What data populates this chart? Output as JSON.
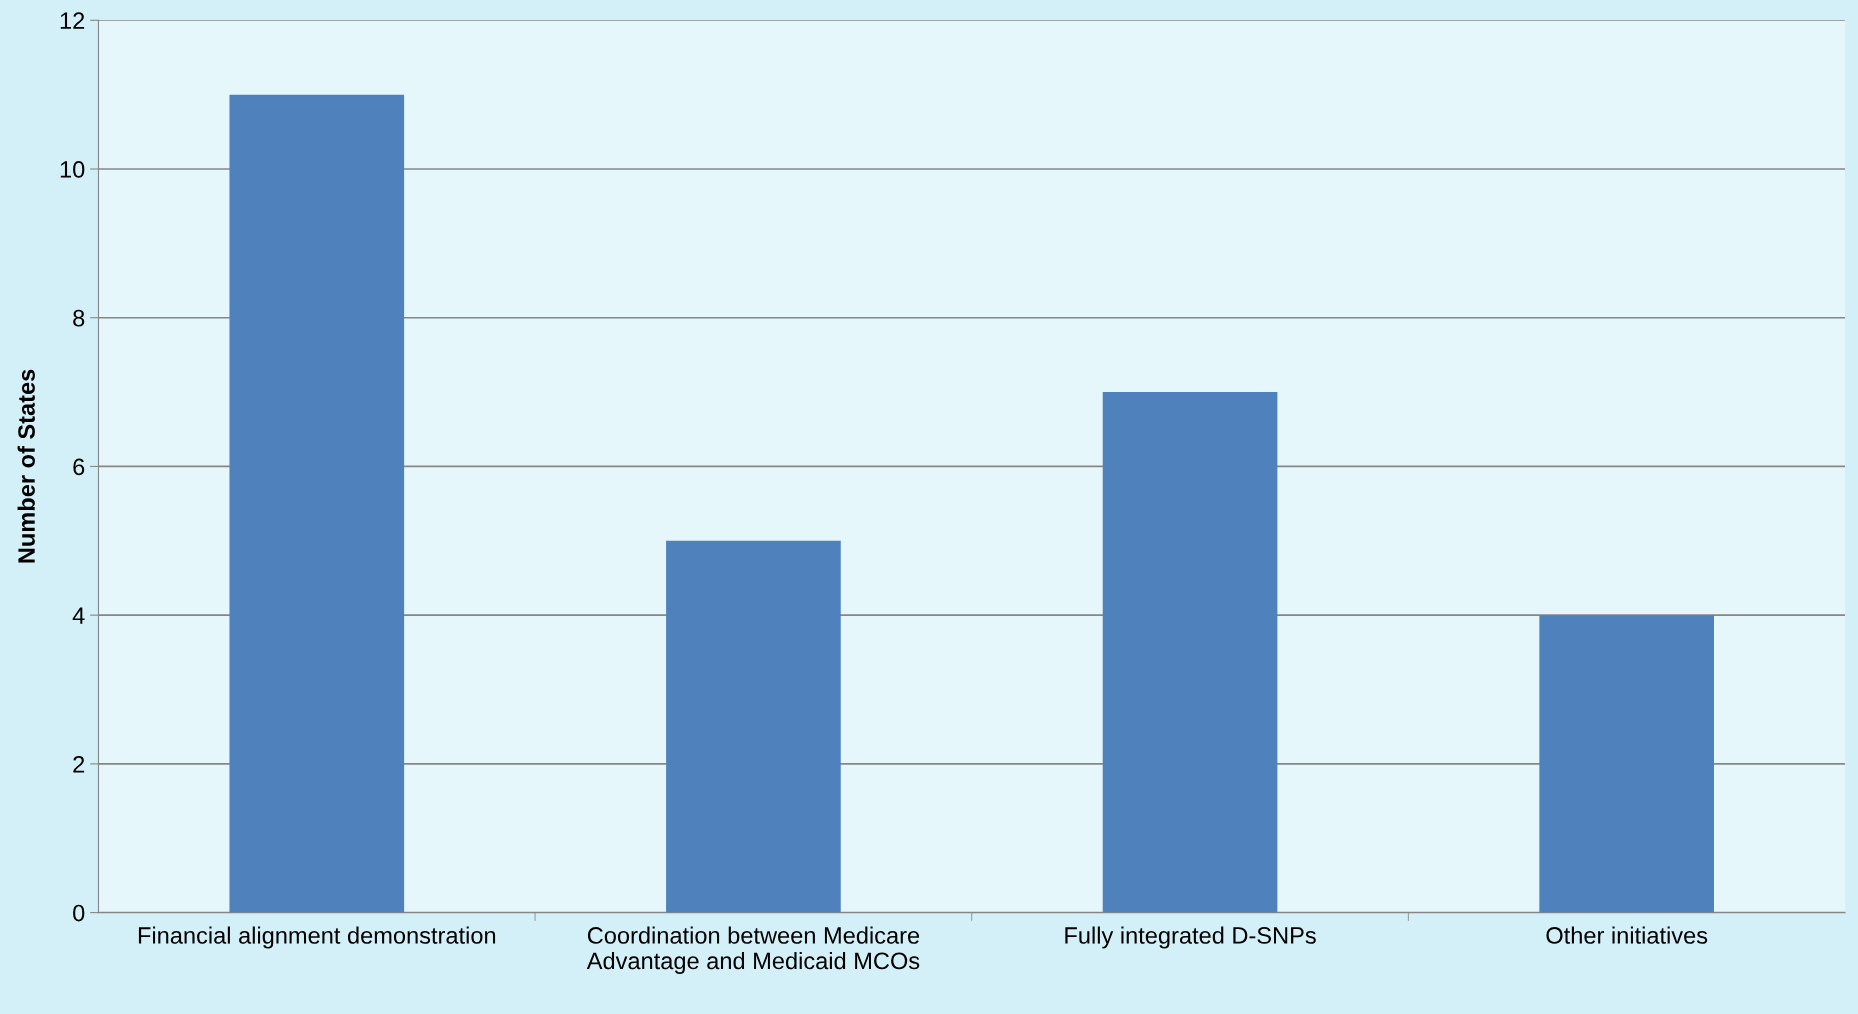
{
  "chart_data": {
    "type": "bar",
    "ylabel": "Number of States",
    "categories": [
      "Financial alignment demonstration",
      "Coordination between Medicare\nAdvantage and Medicaid MCOs",
      "Fully integrated D-SNPs",
      "Other initiatives"
    ],
    "values": [
      11,
      5,
      7,
      4
    ],
    "color": "#4f81bd",
    "ylim": [
      0,
      12
    ],
    "yticks": [
      0,
      2,
      4,
      6,
      8,
      10,
      12
    ],
    "grid": "y"
  }
}
